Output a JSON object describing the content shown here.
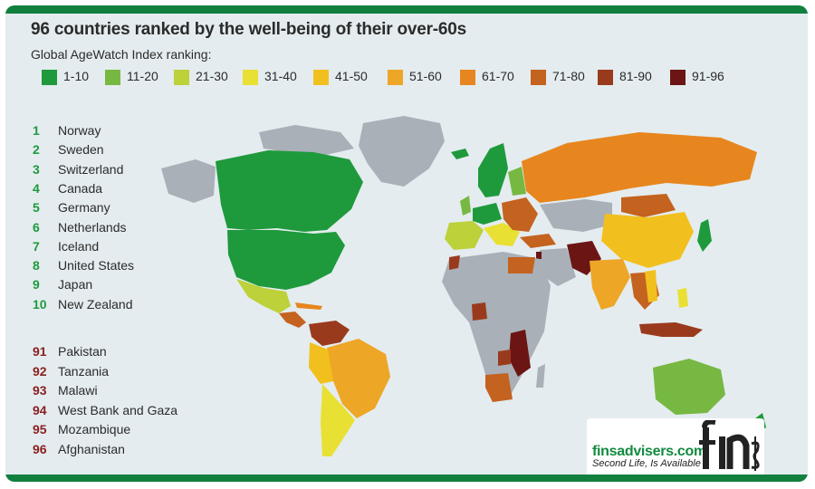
{
  "title": "96 countries ranked by the well-being of their over-60s",
  "subtitle": "Global AgeWatch Index ranking:",
  "legend": [
    {
      "label": "1-10",
      "color": "#1e9a3c"
    },
    {
      "label": "11-20",
      "color": "#77b843"
    },
    {
      "label": "21-30",
      "color": "#bcd13a"
    },
    {
      "label": "31-40",
      "color": "#e9e034"
    },
    {
      "label": "41-50",
      "color": "#f2c01e"
    },
    {
      "label": "51-60",
      "color": "#eea626"
    },
    {
      "label": "61-70",
      "color": "#e7861e"
    },
    {
      "label": "71-80",
      "color": "#c4621f"
    },
    {
      "label": "81-90",
      "color": "#9a3a1d"
    },
    {
      "label": "91-96",
      "color": "#6b1515"
    }
  ],
  "top_ranks": [
    {
      "rank": "1",
      "name": "Norway"
    },
    {
      "rank": "2",
      "name": "Sweden"
    },
    {
      "rank": "3",
      "name": "Switzerland"
    },
    {
      "rank": "4",
      "name": "Canada"
    },
    {
      "rank": "5",
      "name": "Germany"
    },
    {
      "rank": "6",
      "name": "Netherlands"
    },
    {
      "rank": "7",
      "name": "Iceland"
    },
    {
      "rank": "8",
      "name": "United States"
    },
    {
      "rank": "9",
      "name": "Japan"
    },
    {
      "rank": "10",
      "name": "New Zealand"
    }
  ],
  "bottom_ranks": [
    {
      "rank": "91",
      "name": "Pakistan"
    },
    {
      "rank": "92",
      "name": "Tanzania"
    },
    {
      "rank": "93",
      "name": "Malawi"
    },
    {
      "rank": "94",
      "name": "West Bank and Gaza"
    },
    {
      "rank": "95",
      "name": "Mozambique"
    },
    {
      "rank": "96",
      "name": "Afghanistan"
    }
  ],
  "colors": {
    "top_rank_number": "#1e9a3c",
    "bottom_rank_number": "#8a1f1f",
    "no_data": "#a9b0b8",
    "frame_bar": "#11803e"
  },
  "brand": {
    "name": "finsadvisers.com",
    "tagline": "Second  Life, Is Available"
  }
}
